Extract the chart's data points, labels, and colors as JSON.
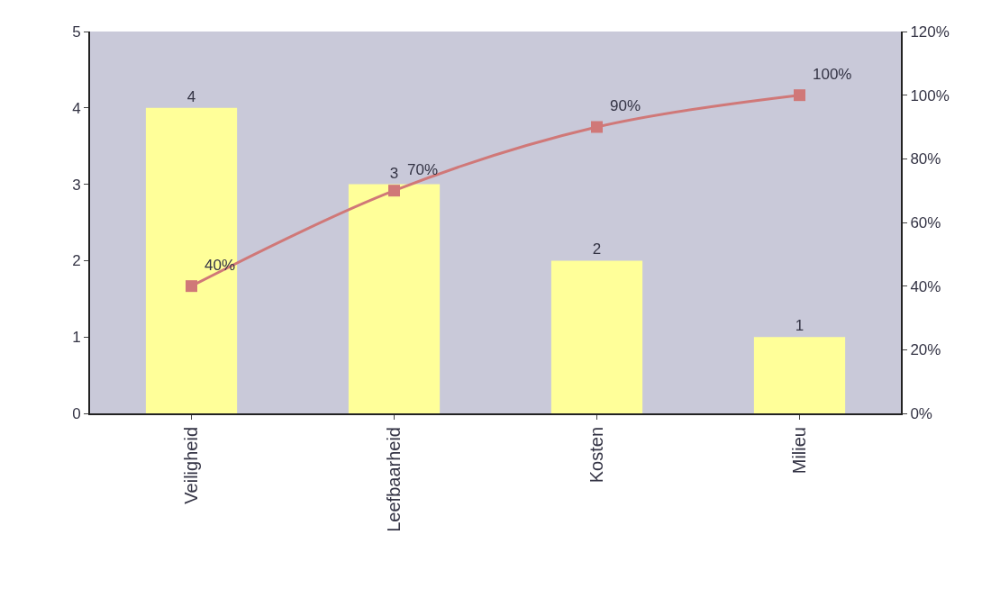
{
  "chart_data": {
    "type": "bar",
    "categories": [
      "Veiligheid",
      "Leefbaarheid",
      "Kosten",
      "Milieu"
    ],
    "series": [
      {
        "color": "#ffff99",
        "values": [
          4,
          3,
          2,
          1
        ],
        "value_labels": [
          "4",
          "3",
          "2",
          "1"
        ]
      },
      {
        "type": "line",
        "axis": "y2",
        "color": "#d07878",
        "marker": "square",
        "values": [
          40,
          70,
          90,
          100
        ],
        "value_labels": [
          "40%",
          "70%",
          "90%",
          "100%"
        ]
      }
    ],
    "ylim": [
      0,
      5
    ],
    "yticks": [
      0,
      1,
      2,
      3,
      4,
      5
    ],
    "y2lim": [
      0,
      120
    ],
    "y2ticks": [
      {
        "value": 0,
        "label": "0%"
      },
      {
        "value": 20,
        "label": "20%"
      },
      {
        "value": 40,
        "label": "40%"
      },
      {
        "value": 60,
        "label": "60%"
      },
      {
        "value": 80,
        "label": "80%"
      },
      {
        "value": 100,
        "label": "100%"
      },
      {
        "value": 120,
        "label": "120%"
      }
    ],
    "grid": false
  }
}
